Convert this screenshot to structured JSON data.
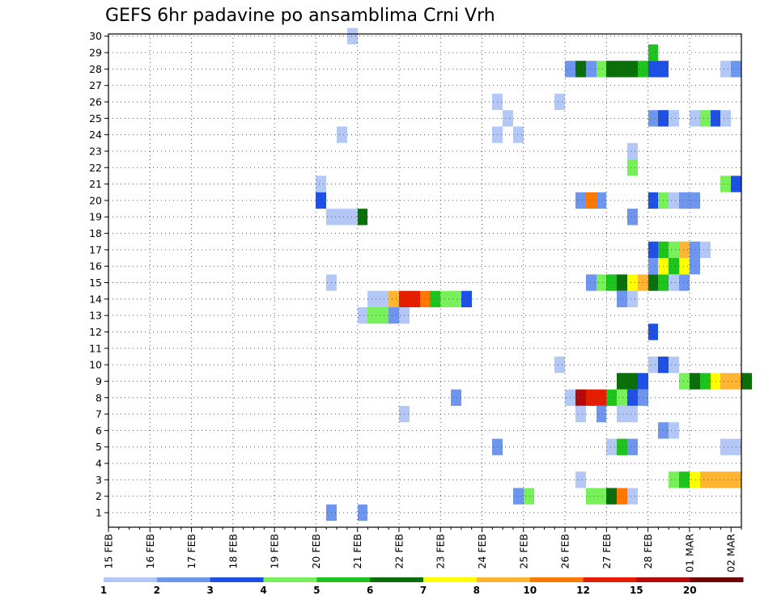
{
  "title": "GEFS 6hr padavine po ansamblima Crni Vrh",
  "colors": [
    "#b4c8f8",
    "#6e96ee",
    "#1e50e6",
    "#78f05a",
    "#1ec31e",
    "#0a6e0a",
    "#ffff00",
    "#ffb432",
    "#ff7800",
    "#e61e00",
    "#b40a0a",
    "#6e0000"
  ],
  "chart_data": {
    "type": "heatmap",
    "title": "GEFS 6hr padavine po ansamblima Crni Vrh",
    "xlabel": "",
    "ylabel": "",
    "x_start": "15 FEB 00Z",
    "x_step_hours": 6,
    "x_ticks": [
      "15 FEB",
      "16 FEB",
      "17 FEB",
      "18 FEB",
      "19 FEB",
      "20 FEB",
      "21 FEB",
      "22 FEB",
      "23 FEB",
      "24 FEB",
      "25 FEB",
      "26 FEB",
      "27 FEB",
      "28 FEB",
      "01 MAR",
      "02 MAR"
    ],
    "y_ticks": [
      1,
      2,
      3,
      4,
      5,
      6,
      7,
      8,
      9,
      10,
      11,
      12,
      13,
      14,
      15,
      16,
      17,
      18,
      19,
      20,
      21,
      22,
      23,
      24,
      25,
      26,
      27,
      28,
      29,
      30
    ],
    "legend_boundaries": [
      "1",
      "2",
      "3",
      "4",
      "5",
      "6",
      "7",
      "8",
      "10",
      "12",
      "15",
      "20"
    ],
    "grid": true,
    "cells": [
      [
        30,
        23,
        0
      ],
      [
        29,
        52,
        4
      ],
      [
        28,
        44,
        1
      ],
      [
        28,
        45,
        5
      ],
      [
        28,
        46,
        1
      ],
      [
        28,
        47,
        3
      ],
      [
        28,
        48,
        5
      ],
      [
        28,
        49,
        5
      ],
      [
        28,
        50,
        5
      ],
      [
        28,
        51,
        4
      ],
      [
        28,
        52,
        2
      ],
      [
        28,
        53,
        2
      ],
      [
        28,
        59,
        0
      ],
      [
        28,
        60,
        1
      ],
      [
        26,
        37,
        0
      ],
      [
        26,
        43,
        0
      ],
      [
        25,
        38,
        0
      ],
      [
        25,
        52,
        1
      ],
      [
        25,
        53,
        2
      ],
      [
        25,
        54,
        0
      ],
      [
        25,
        56,
        0
      ],
      [
        25,
        57,
        3
      ],
      [
        25,
        58,
        2
      ],
      [
        25,
        59,
        0
      ],
      [
        24,
        22,
        0
      ],
      [
        24,
        37,
        0
      ],
      [
        24,
        39,
        0
      ],
      [
        23,
        50,
        0
      ],
      [
        22,
        50,
        3
      ],
      [
        21,
        20,
        0
      ],
      [
        21,
        59,
        3
      ],
      [
        21,
        60,
        2
      ],
      [
        20,
        20,
        2
      ],
      [
        20,
        45,
        1
      ],
      [
        20,
        46,
        8
      ],
      [
        20,
        47,
        1
      ],
      [
        20,
        52,
        2
      ],
      [
        20,
        53,
        3
      ],
      [
        20,
        54,
        0
      ],
      [
        20,
        55,
        1
      ],
      [
        20,
        56,
        1
      ],
      [
        19,
        21,
        0
      ],
      [
        19,
        22,
        0
      ],
      [
        19,
        23,
        0
      ],
      [
        19,
        24,
        5
      ],
      [
        19,
        50,
        1
      ],
      [
        17,
        52,
        2
      ],
      [
        17,
        53,
        4
      ],
      [
        17,
        54,
        3
      ],
      [
        17,
        55,
        7
      ],
      [
        17,
        56,
        1
      ],
      [
        17,
        57,
        0
      ],
      [
        16,
        52,
        1
      ],
      [
        16,
        53,
        6
      ],
      [
        16,
        54,
        4
      ],
      [
        16,
        55,
        6
      ],
      [
        16,
        56,
        1
      ],
      [
        15,
        21,
        0
      ],
      [
        15,
        46,
        1
      ],
      [
        15,
        47,
        3
      ],
      [
        15,
        48,
        4
      ],
      [
        15,
        49,
        5
      ],
      [
        15,
        50,
        6
      ],
      [
        15,
        51,
        7
      ],
      [
        15,
        52,
        5
      ],
      [
        15,
        53,
        4
      ],
      [
        15,
        54,
        0
      ],
      [
        15,
        55,
        1
      ],
      [
        14,
        25,
        0
      ],
      [
        14,
        26,
        0
      ],
      [
        14,
        27,
        7
      ],
      [
        14,
        28,
        9
      ],
      [
        14,
        29,
        9
      ],
      [
        14,
        30,
        8
      ],
      [
        14,
        31,
        4
      ],
      [
        14,
        32,
        3
      ],
      [
        14,
        33,
        3
      ],
      [
        14,
        34,
        2
      ],
      [
        14,
        49,
        1
      ],
      [
        14,
        50,
        0
      ],
      [
        13,
        24,
        0
      ],
      [
        13,
        25,
        3
      ],
      [
        13,
        26,
        3
      ],
      [
        13,
        27,
        1
      ],
      [
        13,
        28,
        0
      ],
      [
        12,
        52,
        2
      ],
      [
        10,
        43,
        0
      ],
      [
        10,
        52,
        0
      ],
      [
        10,
        53,
        2
      ],
      [
        10,
        54,
        0
      ],
      [
        9,
        49,
        5
      ],
      [
        9,
        50,
        5
      ],
      [
        9,
        51,
        2
      ],
      [
        9,
        55,
        3
      ],
      [
        9,
        56,
        5
      ],
      [
        9,
        57,
        4
      ],
      [
        9,
        58,
        6
      ],
      [
        9,
        59,
        7
      ],
      [
        9,
        60,
        7
      ],
      [
        9,
        61,
        5
      ],
      [
        8,
        33,
        1
      ],
      [
        8,
        44,
        0
      ],
      [
        8,
        45,
        10
      ],
      [
        8,
        46,
        9
      ],
      [
        8,
        47,
        9
      ],
      [
        8,
        48,
        4
      ],
      [
        8,
        49,
        3
      ],
      [
        8,
        50,
        2
      ],
      [
        8,
        51,
        1
      ],
      [
        7,
        28,
        0
      ],
      [
        7,
        45,
        0
      ],
      [
        7,
        47,
        1
      ],
      [
        7,
        49,
        0
      ],
      [
        7,
        50,
        0
      ],
      [
        6,
        53,
        1
      ],
      [
        6,
        54,
        0
      ],
      [
        5,
        37,
        1
      ],
      [
        5,
        48,
        0
      ],
      [
        5,
        49,
        4
      ],
      [
        5,
        50,
        1
      ],
      [
        5,
        59,
        0
      ],
      [
        5,
        60,
        0
      ],
      [
        3,
        45,
        0
      ],
      [
        3,
        54,
        3
      ],
      [
        3,
        55,
        4
      ],
      [
        3,
        56,
        6
      ],
      [
        3,
        57,
        7
      ],
      [
        3,
        58,
        7
      ],
      [
        3,
        59,
        7
      ],
      [
        3,
        60,
        7
      ],
      [
        2,
        39,
        1
      ],
      [
        2,
        40,
        3
      ],
      [
        2,
        46,
        3
      ],
      [
        2,
        47,
        3
      ],
      [
        2,
        48,
        5
      ],
      [
        2,
        49,
        8
      ],
      [
        2,
        50,
        0
      ],
      [
        1,
        21,
        1
      ],
      [
        1,
        24,
        1
      ]
    ]
  }
}
